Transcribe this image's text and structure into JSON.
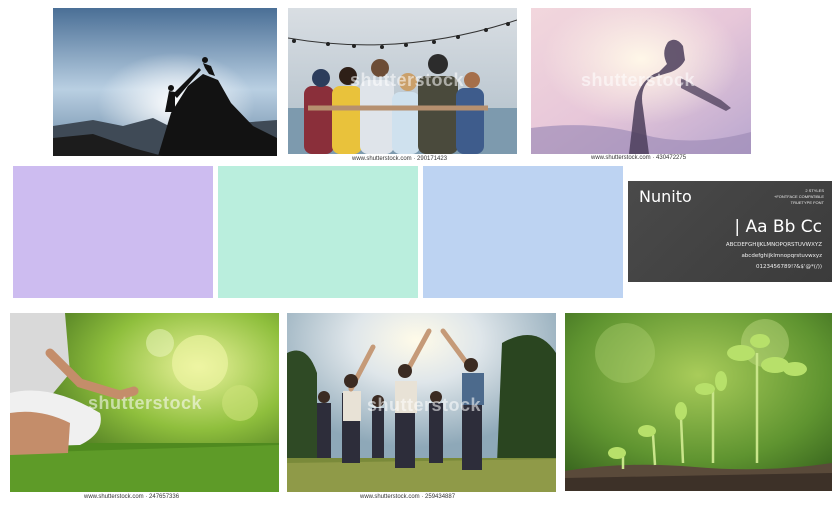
{
  "watermark": "shutterstock",
  "images": [
    {
      "name": "climbers-silhouette-image",
      "caption": ""
    },
    {
      "name": "group-hug-image",
      "caption": "www.shutterstock.com · 290171423"
    },
    {
      "name": "woman-sunset-image",
      "caption": "www.shutterstock.com · 430472275"
    },
    {
      "name": "meditation-image",
      "caption": "www.shutterstock.com · 247657336"
    },
    {
      "name": "circle-friends-image",
      "caption": "www.shutterstock.com · 259434887"
    },
    {
      "name": "seedlings-image",
      "caption": ""
    }
  ],
  "swatches": [
    {
      "name": "lavender",
      "color": "#cdbcf0"
    },
    {
      "name": "mint",
      "color": "#baeedd"
    },
    {
      "name": "periwinkle",
      "color": "#bdd3f2"
    }
  ],
  "font_card": {
    "name": "Nunito",
    "meta": "2 STYLES\n+FONTFACE COMPATIBLE\nTRUETYPE FONT",
    "sample": "| Aa Bb Cc",
    "uppercase": "ABCDEFGHIJKLMNOPQRSTUVWXYZ",
    "lowercase": "abcdefghijklmnopqrstuvwxyz",
    "digits": "0123456789!?&$'@*(/))"
  }
}
